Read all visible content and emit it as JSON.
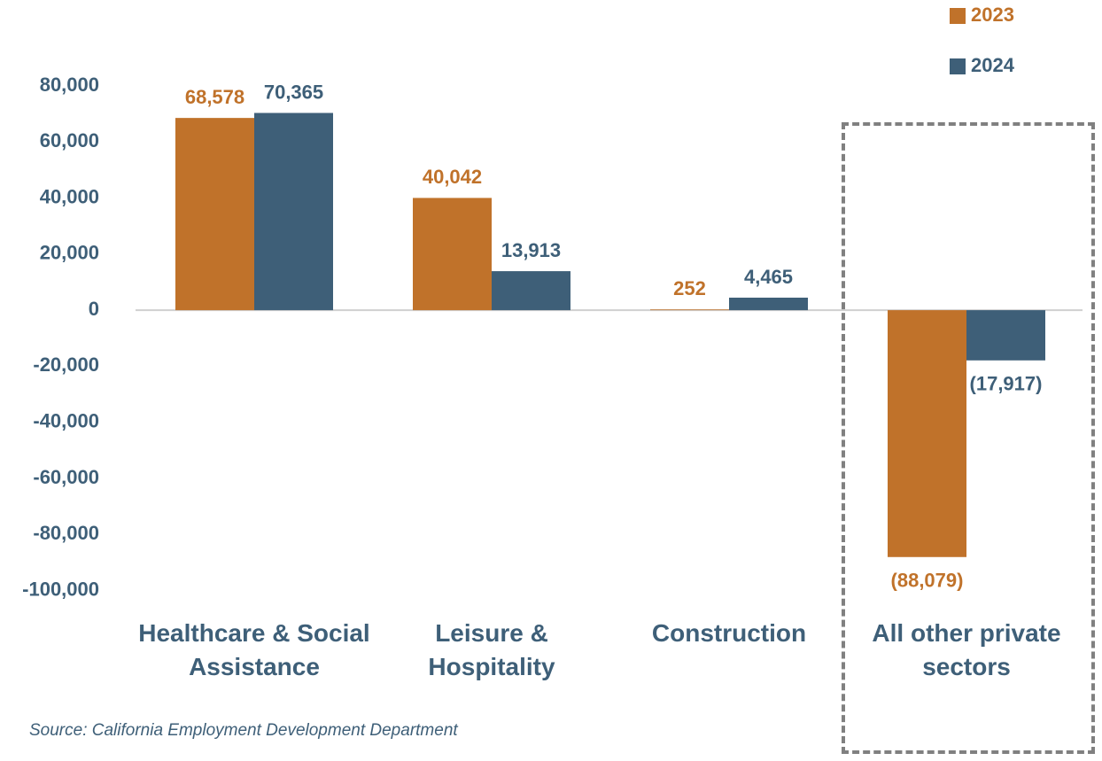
{
  "chart_data": {
    "type": "bar",
    "categories": [
      "Healthcare & Social Assistance",
      "Leisure & Hospitality",
      "Construction",
      "All other private sectors"
    ],
    "series": [
      {
        "name": "2023",
        "color": "#c0722a",
        "values": [
          68578,
          40042,
          252,
          -88079
        ],
        "value_labels": [
          "68,578",
          "40,042",
          "252",
          "(88,079)"
        ]
      },
      {
        "name": "2024",
        "color": "#3e5f78",
        "values": [
          70365,
          13913,
          4465,
          -17917
        ],
        "value_labels": [
          "70,365",
          "13,913",
          "4,465",
          "(17,917)"
        ]
      }
    ],
    "ylim": [
      -100000,
      80000
    ],
    "yticks": [
      {
        "value": -100000,
        "label": "-100,000"
      },
      {
        "value": -80000,
        "label": "-80,000"
      },
      {
        "value": -60000,
        "label": "-60,000"
      },
      {
        "value": -40000,
        "label": "-40,000"
      },
      {
        "value": -20000,
        "label": "-20,000"
      },
      0,
      {
        "value": 20000,
        "label": "20,000"
      },
      {
        "value": 40000,
        "label": "40,000"
      },
      {
        "value": 60000,
        "label": "60,000"
      },
      {
        "value": 80000,
        "label": "80,000"
      }
    ],
    "grid": false,
    "legend": "top-right",
    "source": "Source: California Employment Development Department"
  }
}
